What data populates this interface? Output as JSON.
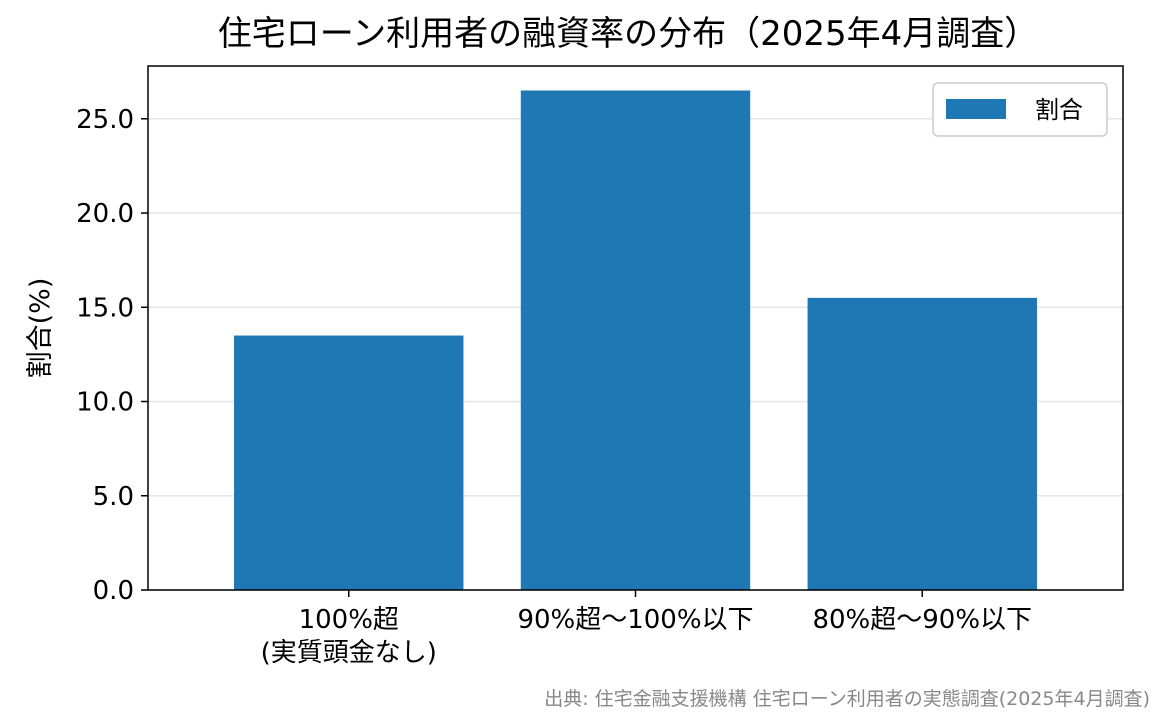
{
  "chart_data": {
    "type": "bar",
    "title": "住宅ローン利用者の融資率の分布（2025年4月調査）",
    "ylabel": "割合(%)",
    "xlabel": "",
    "categories": [
      [
        "100%超",
        "(実質頭金なし)"
      ],
      [
        "90%超～100%以下"
      ],
      [
        "80%超～90%以下"
      ]
    ],
    "series": [
      {
        "name": "割合",
        "values": [
          13.5,
          26.5,
          15.5
        ]
      }
    ],
    "ylim": [
      0,
      27.8
    ],
    "yticks": [
      "0.0",
      "5.0",
      "10.0",
      "15.0",
      "20.0",
      "25.0"
    ],
    "grid": "y",
    "legend": "top-right",
    "bar_color": "#1f77b4",
    "grid_color": "#e6e6e6"
  },
  "source": "出典: 住宅金融支援機構 住宅ローン利用者の実態調査(2025年4月調査)"
}
